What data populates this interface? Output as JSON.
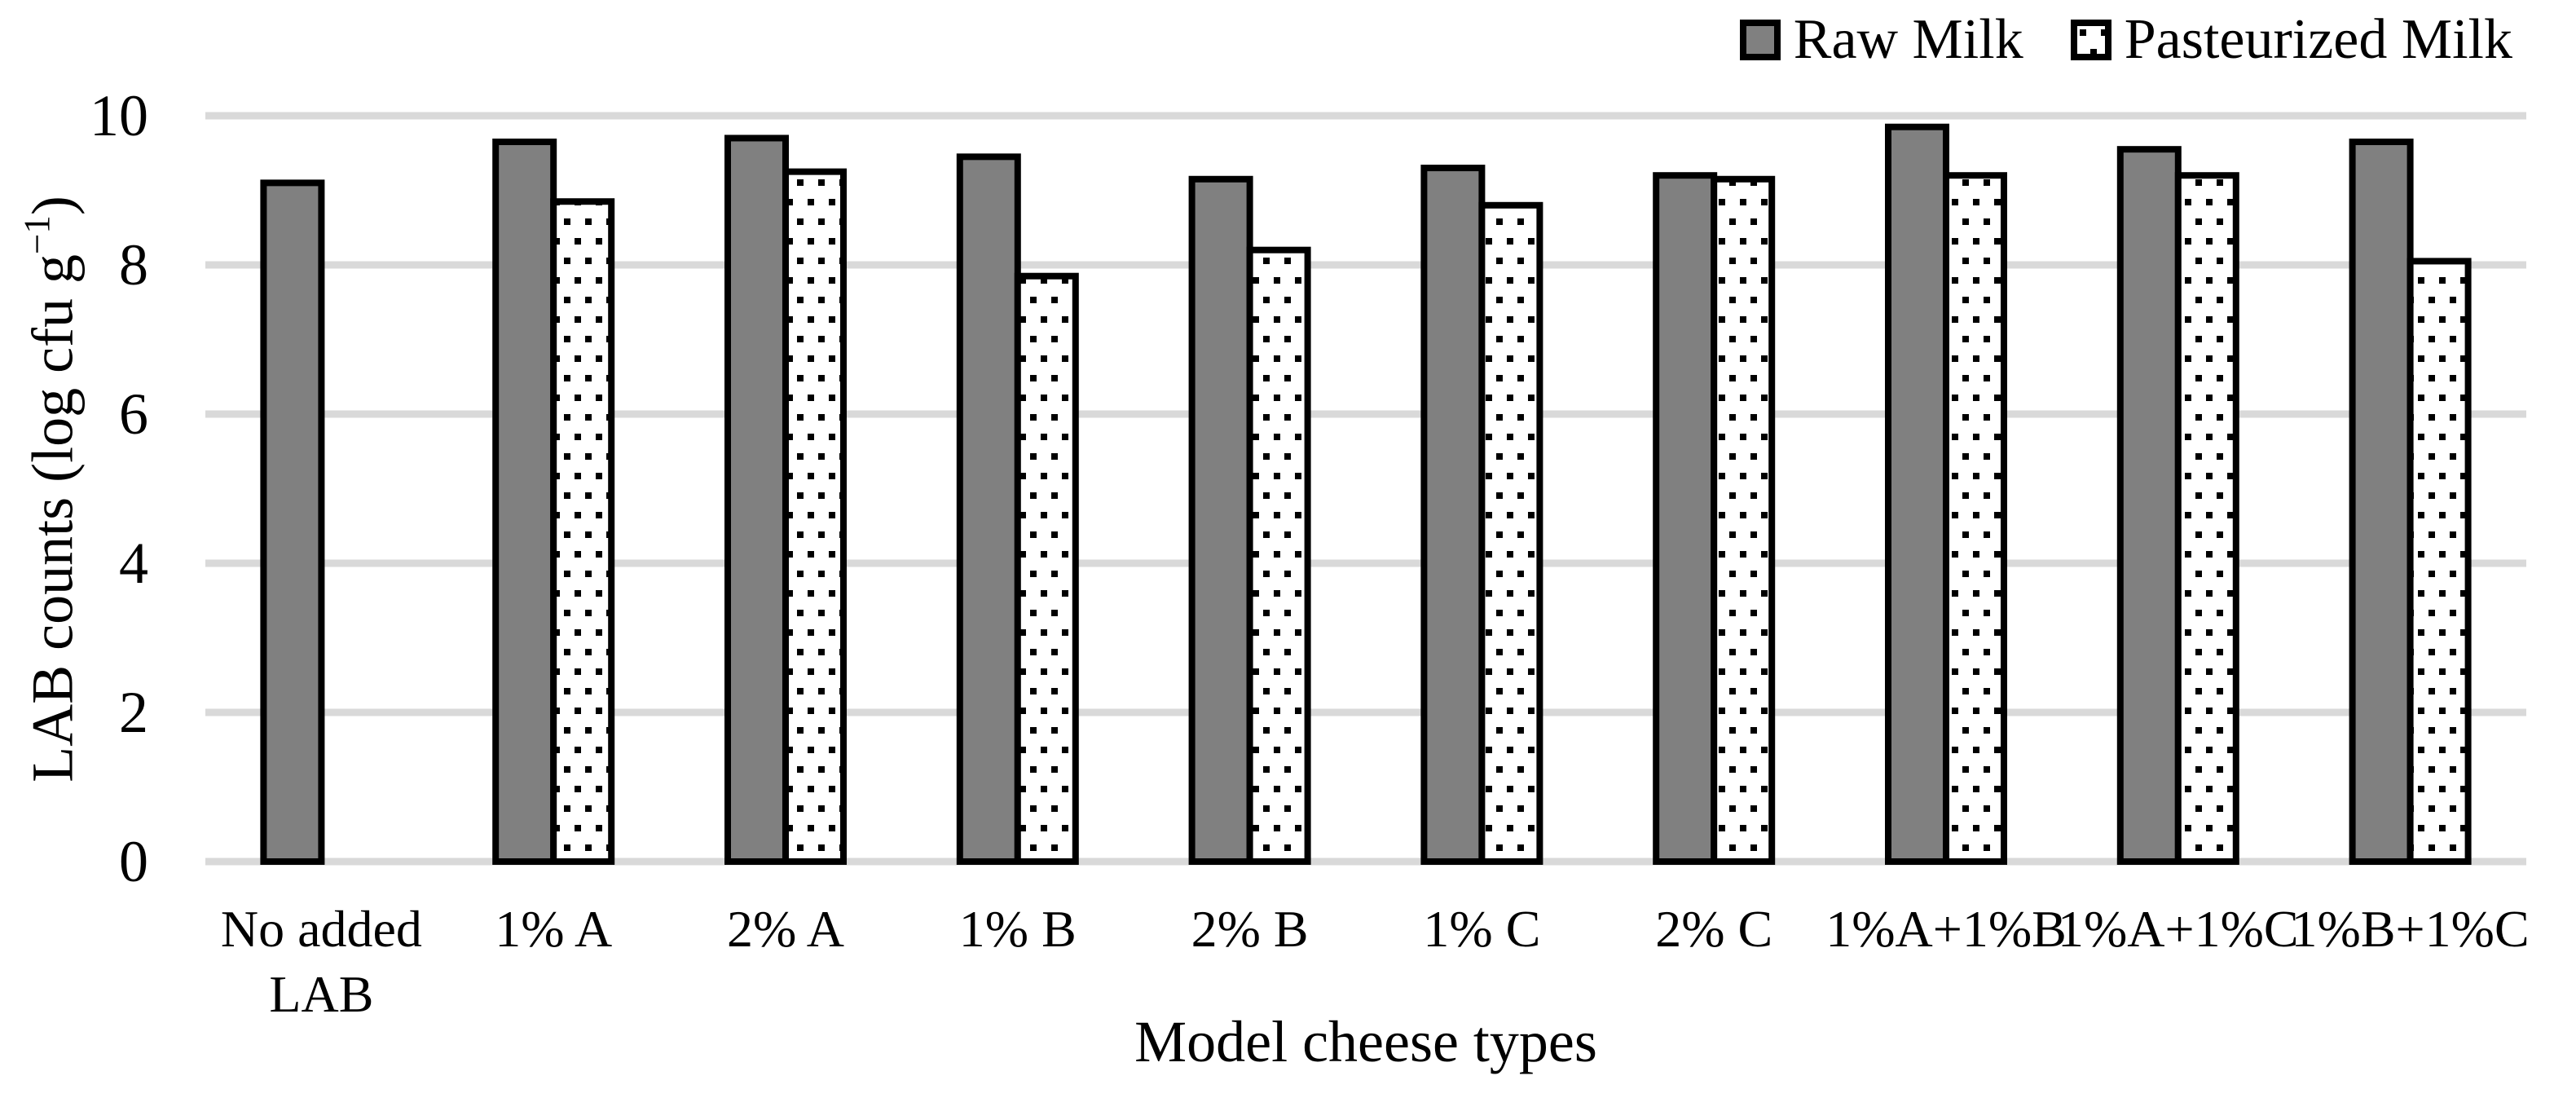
{
  "legend": {
    "items": [
      {
        "label": "Raw Milk",
        "swatch": "gray-solid"
      },
      {
        "label": "Pasteurized Milk",
        "swatch": "black-dotted"
      }
    ]
  },
  "y_axis": {
    "title_main": "LAB counts (log cfu g",
    "title_sup": "−1",
    "title_close": ")",
    "ticks": [
      0,
      2,
      4,
      6,
      8,
      10
    ],
    "range": [
      0,
      10
    ]
  },
  "x_axis": {
    "title": "Model cheese types"
  },
  "chart_data": {
    "type": "bar",
    "title": "",
    "categories": [
      "No added LAB",
      "1% A",
      "2% A",
      "1% B",
      "2% B",
      "1% C",
      "2% C",
      "1%A+1%B",
      "1%A+1%C",
      "1%B+1%C"
    ],
    "series": [
      {
        "name": "Raw Milk",
        "style": "solid-gray",
        "values": [
          9.1,
          9.65,
          9.7,
          9.45,
          9.15,
          9.3,
          9.2,
          9.85,
          9.55,
          9.65
        ]
      },
      {
        "name": "Pasteurized Milk",
        "style": "dotted-white",
        "values": [
          null,
          8.85,
          9.25,
          7.85,
          8.2,
          8.8,
          9.15,
          9.2,
          9.2,
          8.05
        ]
      }
    ],
    "xlabel": "Model cheese types",
    "ylabel": "LAB counts (log cfu g−1)",
    "ylim": [
      0,
      10
    ],
    "grid": "horizontal",
    "legend_position": "top-right",
    "colors": {
      "raw_fill": "#808080",
      "pasteurized_fill": "#ffffff",
      "pattern_dot": "#000000",
      "bar_border": "#000000",
      "gridline": "#d9d9d9",
      "text": "#000000",
      "background": "#ffffff"
    }
  }
}
